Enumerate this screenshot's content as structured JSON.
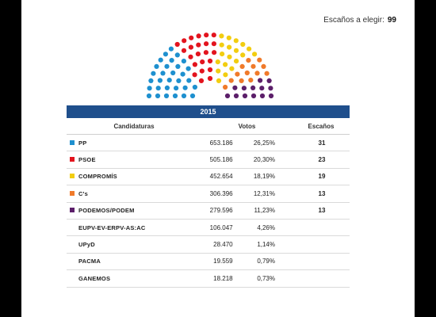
{
  "header": {
    "seats_label": "Escaños a elegir:",
    "seats_total": "99"
  },
  "table": {
    "year": "2015",
    "columns": {
      "party": "Candidaturas",
      "votes": "Votos",
      "seats": "Escaños"
    },
    "rows": [
      {
        "party": "PP",
        "votes": "653.186",
        "pct": "26,25%",
        "seats": "31",
        "color": "#1e90cf"
      },
      {
        "party": "PSOE",
        "votes": "505.186",
        "pct": "20,30%",
        "seats": "23",
        "color": "#e3141e"
      },
      {
        "party": "COMPROMÍS",
        "votes": "452.654",
        "pct": "18,19%",
        "seats": "19",
        "color": "#f2cd10"
      },
      {
        "party": "C's",
        "votes": "306.396",
        "pct": "12,31%",
        "seats": "13",
        "color": "#f07a2a"
      },
      {
        "party": "PODEMOS/PODEM",
        "votes": "279.596",
        "pct": "11,23%",
        "seats": "13",
        "color": "#5c1f6a"
      },
      {
        "party": "EUPV-EV-ERPV-AS:AC",
        "votes": "106.047",
        "pct": "4,26%",
        "seats": "",
        "color": ""
      },
      {
        "party": "UPyD",
        "votes": "28.470",
        "pct": "1,14%",
        "seats": "",
        "color": ""
      },
      {
        "party": "PACMA",
        "votes": "19.559",
        "pct": "0,79%",
        "seats": "",
        "color": ""
      },
      {
        "party": "GANEMOS",
        "votes": "18.218",
        "pct": "0,73%",
        "seats": "",
        "color": ""
      }
    ]
  }
}
